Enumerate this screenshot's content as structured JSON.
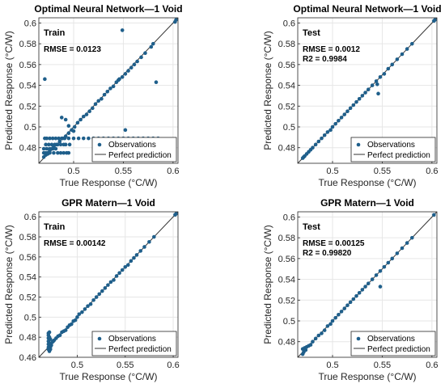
{
  "charts": [
    {
      "type": "scatter",
      "title": "Optimal Neural Network—1 Void",
      "xlabel": "True Response (°C/W)",
      "ylabel": "Predicted Response (°C/W)",
      "xlim": [
        0.465,
        0.605
      ],
      "ylim": [
        0.465,
        0.605
      ],
      "x_ticks": [
        0.5,
        0.55,
        0.6
      ],
      "y_ticks": [
        0.48,
        0.5,
        0.52,
        0.54,
        0.56,
        0.58,
        0.6
      ],
      "x_tick_labels": [
        "0.5",
        "0.55",
        "0.6"
      ],
      "y_tick_labels": [
        "0.48",
        "0.5",
        "0.52",
        "0.54",
        "0.56",
        "0.58",
        "0.6"
      ],
      "grid": true,
      "legend_position": "bottom-right",
      "legend": [
        "Observations",
        "Perfect prediction"
      ],
      "annotation_title": "Train",
      "annotations": [
        "RMSE = 0.0123"
      ],
      "series": [
        {
          "x": [
            0.47,
            0.472,
            0.474,
            0.476,
            0.478,
            0.48,
            0.483,
            0.486,
            0.489,
            0.492,
            0.495,
            0.498,
            0.501,
            0.504,
            0.507,
            0.51,
            0.513,
            0.516,
            0.519,
            0.522,
            0.525,
            0.528,
            0.531,
            0.534,
            0.537,
            0.54,
            0.543,
            0.546,
            0.549,
            0.552,
            0.555,
            0.558,
            0.561,
            0.564,
            0.568,
            0.572,
            0.578,
            0.58,
            0.602,
            0.603,
            0.471,
            0.473,
            0.476,
            0.479,
            0.482,
            0.485,
            0.488,
            0.491,
            0.495,
            0.5,
            0.505,
            0.51,
            0.515,
            0.52,
            0.525,
            0.53,
            0.535,
            0.54,
            0.545,
            0.55,
            0.555,
            0.56,
            0.565,
            0.57,
            0.575,
            0.58,
            0.585,
            0.472,
            0.475,
            0.478,
            0.481,
            0.484,
            0.487,
            0.49,
            0.492,
            0.496,
            0.47,
            0.472,
            0.474,
            0.476,
            0.48,
            0.484,
            0.487,
            0.49,
            0.493,
            0.495,
            0.47,
            0.473,
            0.476,
            0.479,
            0.482,
            0.495,
            0.5,
            0.488,
            0.492,
            0.583,
            0.549,
            0.471,
            0.545,
            0.552
          ],
          "y": [
            0.471,
            0.473,
            0.474,
            0.477,
            0.479,
            0.481,
            0.483,
            0.486,
            0.489,
            0.491,
            0.494,
            0.497,
            0.5,
            0.504,
            0.507,
            0.51,
            0.512,
            0.515,
            0.518,
            0.522,
            0.525,
            0.527,
            0.531,
            0.534,
            0.537,
            0.539,
            0.543,
            0.546,
            0.548,
            0.551,
            0.554,
            0.557,
            0.56,
            0.563,
            0.567,
            0.571,
            0.577,
            0.58,
            0.601,
            0.603,
            0.489,
            0.489,
            0.489,
            0.489,
            0.489,
            0.489,
            0.489,
            0.489,
            0.489,
            0.489,
            0.489,
            0.489,
            0.489,
            0.489,
            0.489,
            0.489,
            0.489,
            0.489,
            0.489,
            0.489,
            0.489,
            0.489,
            0.489,
            0.489,
            0.489,
            0.489,
            0.489,
            0.483,
            0.483,
            0.483,
            0.483,
            0.483,
            0.483,
            0.483,
            0.483,
            0.483,
            0.475,
            0.475,
            0.475,
            0.475,
            0.475,
            0.475,
            0.475,
            0.475,
            0.475,
            0.475,
            0.479,
            0.479,
            0.479,
            0.479,
            0.479,
            0.501,
            0.496,
            0.509,
            0.507,
            0.543,
            0.593,
            0.546,
            0.545,
            0.497
          ]
        }
      ]
    },
    {
      "type": "scatter",
      "title": "Optimal Neural Network—1 Void",
      "xlabel": "True Response (°C/W)",
      "ylabel": "Predicted Response (°C/W)",
      "xlim": [
        0.465,
        0.605
      ],
      "ylim": [
        0.465,
        0.605
      ],
      "x_ticks": [
        0.5,
        0.55,
        0.6
      ],
      "y_ticks": [
        0.48,
        0.5,
        0.52,
        0.54,
        0.56,
        0.58,
        0.6
      ],
      "x_tick_labels": [
        "0.5",
        "0.55",
        "0.6"
      ],
      "y_tick_labels": [
        "0.48",
        "0.5",
        "0.52",
        "0.54",
        "0.56",
        "0.58",
        "0.6"
      ],
      "grid": true,
      "legend_position": "bottom-right",
      "legend": [
        "Observations",
        "Perfect prediction"
      ],
      "annotation_title": "Test",
      "annotations": [
        "RMSE = 0.0012",
        "R2 = 0.9984"
      ],
      "series": [
        {
          "x": [
            0.47,
            0.471,
            0.472,
            0.474,
            0.476,
            0.478,
            0.48,
            0.483,
            0.486,
            0.489,
            0.492,
            0.495,
            0.498,
            0.5,
            0.503,
            0.506,
            0.509,
            0.512,
            0.515,
            0.518,
            0.521,
            0.524,
            0.527,
            0.53,
            0.533,
            0.536,
            0.54,
            0.544,
            0.548,
            0.552,
            0.556,
            0.56,
            0.565,
            0.57,
            0.575,
            0.58,
            0.602,
            0.603,
            0.546,
            0.545
          ],
          "y": [
            0.47,
            0.471,
            0.472,
            0.474,
            0.476,
            0.478,
            0.48,
            0.483,
            0.486,
            0.489,
            0.492,
            0.495,
            0.497,
            0.5,
            0.503,
            0.506,
            0.509,
            0.512,
            0.515,
            0.518,
            0.521,
            0.524,
            0.527,
            0.53,
            0.533,
            0.536,
            0.54,
            0.544,
            0.548,
            0.551,
            0.556,
            0.56,
            0.565,
            0.57,
            0.575,
            0.58,
            0.602,
            0.603,
            0.532,
            0.541
          ]
        }
      ]
    },
    {
      "type": "scatter",
      "title": "GPR Matern—1 Void",
      "xlabel": "True Response (°C/W)",
      "ylabel": "Predicted Response (°C/W)",
      "xlim": [
        0.46,
        0.605
      ],
      "ylim": [
        0.46,
        0.605
      ],
      "x_ticks": [
        0.5,
        0.55,
        0.6
      ],
      "y_ticks": [
        0.46,
        0.48,
        0.5,
        0.52,
        0.54,
        0.56,
        0.58,
        0.6
      ],
      "x_tick_labels": [
        "0.5",
        "0.55",
        "0.6"
      ],
      "y_tick_labels": [
        "0.46",
        "0.48",
        "0.5",
        "0.52",
        "0.54",
        "0.56",
        "0.58",
        "0.6"
      ],
      "grid": true,
      "legend_position": "bottom-right",
      "legend": [
        "Observations",
        "Perfect prediction"
      ],
      "annotation_title": "Train",
      "annotations": [
        "RMSE = 0.00142"
      ],
      "series": [
        {
          "x": [
            0.47,
            0.47,
            0.47,
            0.47,
            0.47,
            0.47,
            0.471,
            0.471,
            0.471,
            0.472,
            0.472,
            0.473,
            0.474,
            0.475,
            0.476,
            0.478,
            0.48,
            0.482,
            0.484,
            0.486,
            0.488,
            0.49,
            0.492,
            0.494,
            0.496,
            0.498,
            0.5,
            0.502,
            0.505,
            0.508,
            0.511,
            0.514,
            0.517,
            0.52,
            0.523,
            0.526,
            0.529,
            0.532,
            0.535,
            0.538,
            0.541,
            0.544,
            0.547,
            0.55,
            0.553,
            0.556,
            0.559,
            0.562,
            0.566,
            0.57,
            0.575,
            0.58,
            0.602,
            0.603,
            0.47,
            0.471,
            0.472
          ],
          "y": [
            0.468,
            0.47,
            0.473,
            0.476,
            0.479,
            0.482,
            0.466,
            0.474,
            0.485,
            0.47,
            0.478,
            0.472,
            0.475,
            0.476,
            0.477,
            0.479,
            0.481,
            0.482,
            0.485,
            0.486,
            0.487,
            0.49,
            0.492,
            0.493,
            0.496,
            0.497,
            0.5,
            0.503,
            0.505,
            0.508,
            0.511,
            0.513,
            0.517,
            0.52,
            0.523,
            0.526,
            0.529,
            0.532,
            0.535,
            0.537,
            0.541,
            0.544,
            0.547,
            0.55,
            0.552,
            0.556,
            0.559,
            0.562,
            0.566,
            0.57,
            0.575,
            0.58,
            0.602,
            0.603,
            0.484,
            0.48,
            0.468
          ]
        }
      ]
    },
    {
      "type": "scatter",
      "title": "GPR Matern—1 Void",
      "xlabel": "True Response (°C/W)",
      "ylabel": "Predicted Response (°C/W)",
      "xlim": [
        0.465,
        0.605
      ],
      "ylim": [
        0.465,
        0.605
      ],
      "x_ticks": [
        0.5,
        0.55,
        0.6
      ],
      "y_ticks": [
        0.48,
        0.5,
        0.52,
        0.54,
        0.56,
        0.58,
        0.6
      ],
      "x_tick_labels": [
        "0.5",
        "0.55",
        "0.6"
      ],
      "y_tick_labels": [
        "0.48",
        "0.5",
        "0.52",
        "0.54",
        "0.56",
        "0.58",
        "0.6"
      ],
      "grid": true,
      "legend_position": "bottom-right",
      "legend": [
        "Observations",
        "Perfect prediction"
      ],
      "annotation_title": "Test",
      "annotations": [
        "RMSE = 0.00125",
        "R2 = 0.99820"
      ],
      "series": [
        {
          "x": [
            0.47,
            0.47,
            0.471,
            0.472,
            0.473,
            0.474,
            0.476,
            0.478,
            0.48,
            0.483,
            0.486,
            0.489,
            0.492,
            0.495,
            0.498,
            0.5,
            0.503,
            0.506,
            0.509,
            0.512,
            0.515,
            0.518,
            0.521,
            0.524,
            0.527,
            0.53,
            0.533,
            0.536,
            0.54,
            0.544,
            0.548,
            0.552,
            0.556,
            0.56,
            0.565,
            0.57,
            0.575,
            0.58,
            0.602,
            0.548
          ],
          "y": [
            0.468,
            0.473,
            0.47,
            0.474,
            0.472,
            0.475,
            0.476,
            0.477,
            0.48,
            0.483,
            0.486,
            0.488,
            0.491,
            0.495,
            0.497,
            0.5,
            0.503,
            0.506,
            0.509,
            0.512,
            0.515,
            0.518,
            0.521,
            0.524,
            0.527,
            0.53,
            0.533,
            0.536,
            0.54,
            0.544,
            0.548,
            0.552,
            0.556,
            0.56,
            0.565,
            0.57,
            0.575,
            0.58,
            0.602,
            0.533
          ]
        }
      ]
    }
  ]
}
